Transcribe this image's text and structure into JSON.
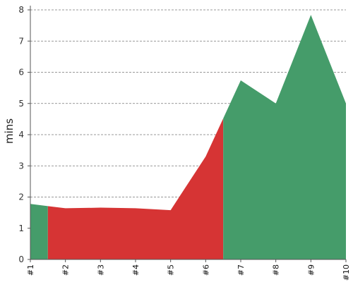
{
  "chart_data": {
    "type": "area",
    "ylabel": "mins",
    "xlabel": "",
    "x": [
      "#1",
      "#2",
      "#3",
      "#4",
      "#5",
      "#6",
      "#7",
      "#8",
      "#9",
      "#10"
    ],
    "values": [
      1.78,
      1.64,
      1.66,
      1.64,
      1.58,
      3.3,
      5.74,
      5.0,
      7.84,
      5.0
    ],
    "ylim": [
      0,
      8
    ],
    "yticks": [
      "0",
      "1",
      "2",
      "3",
      "4",
      "5",
      "6",
      "7",
      "8"
    ],
    "grid": true,
    "colors": {
      "green": "#459c6a",
      "red": "#d63434"
    },
    "segments": [
      {
        "from": 1,
        "to": 1.5,
        "color": "green"
      },
      {
        "from": 1.5,
        "to": 6.5,
        "color": "red"
      },
      {
        "from": 6.5,
        "to": 10,
        "color": "green"
      }
    ]
  }
}
